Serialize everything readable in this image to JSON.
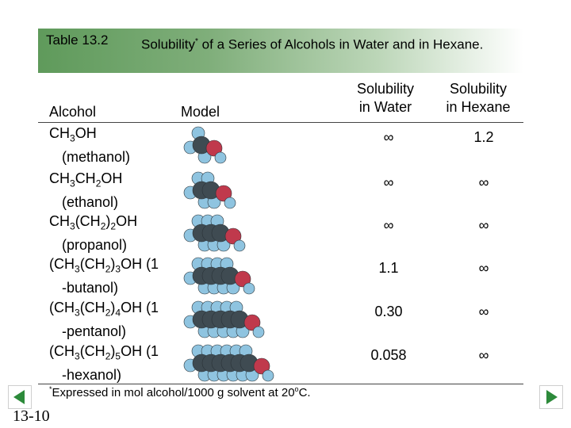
{
  "header": {
    "table_number": "Table 13.2",
    "title_part1": "Solubility",
    "title_mark": "*",
    "title_part2": " of a Series of Alcohols in Water and in Hexane."
  },
  "columns": {
    "alcohol": "Alcohol",
    "model": "Model",
    "water": [
      "Solubility",
      "in Water"
    ],
    "hexane": [
      "Solubility",
      "in Hexane"
    ]
  },
  "rows": [
    {
      "f": [
        "CH",
        "3",
        "OH"
      ],
      "name": "(methanol)",
      "water": "∞",
      "hexane": "1.2",
      "model": "methanol"
    },
    {
      "f": [
        "CH",
        "3",
        "CH",
        "2",
        "OH"
      ],
      "name": "(ethanol)",
      "water": "∞",
      "hexane": "∞",
      "model": "ethanol"
    },
    {
      "f": [
        "CH",
        "3",
        "(CH",
        "2",
        ")",
        "2",
        "OH"
      ],
      "name": "(propanol)",
      "water": "∞",
      "hexane": "∞",
      "model": "propanol"
    },
    {
      "f": [
        "(CH",
        "3",
        "(CH",
        "2",
        ")",
        "3",
        "OH (1"
      ],
      "name": "-butanol)",
      "water": "1.1",
      "hexane": "∞",
      "model": "1-butanol"
    },
    {
      "f": [
        "(CH",
        "3",
        "(CH",
        "2",
        ")",
        "4",
        "OH (1"
      ],
      "name": "-pentanol)",
      "water": "0.30",
      "hexane": "∞",
      "model": "1-pentanol"
    },
    {
      "f": [
        "(CH",
        "3",
        "(CH",
        "2",
        ")",
        "5",
        "OH (1"
      ],
      "name": "-hexanol)",
      "water": "0.058",
      "hexane": "∞",
      "model": "1-hexanol"
    }
  ],
  "footnote": {
    "mark": "*",
    "text": "Expressed in mol alcohol/1000 g solvent at 20",
    "deg": "o",
    "unit": "C."
  },
  "slide_number": "13-10",
  "nav": {
    "prev_icon": "arrow-left-icon",
    "next_icon": "arrow-right-icon"
  },
  "colors": {
    "banner_dark": "#5f9a5b",
    "banner_light": "#ffffff",
    "carbon": "#3f4b52",
    "hydrogen": "#8fc4e0",
    "oxygen": "#c0394c",
    "nav_green": "#2c8a3a"
  }
}
